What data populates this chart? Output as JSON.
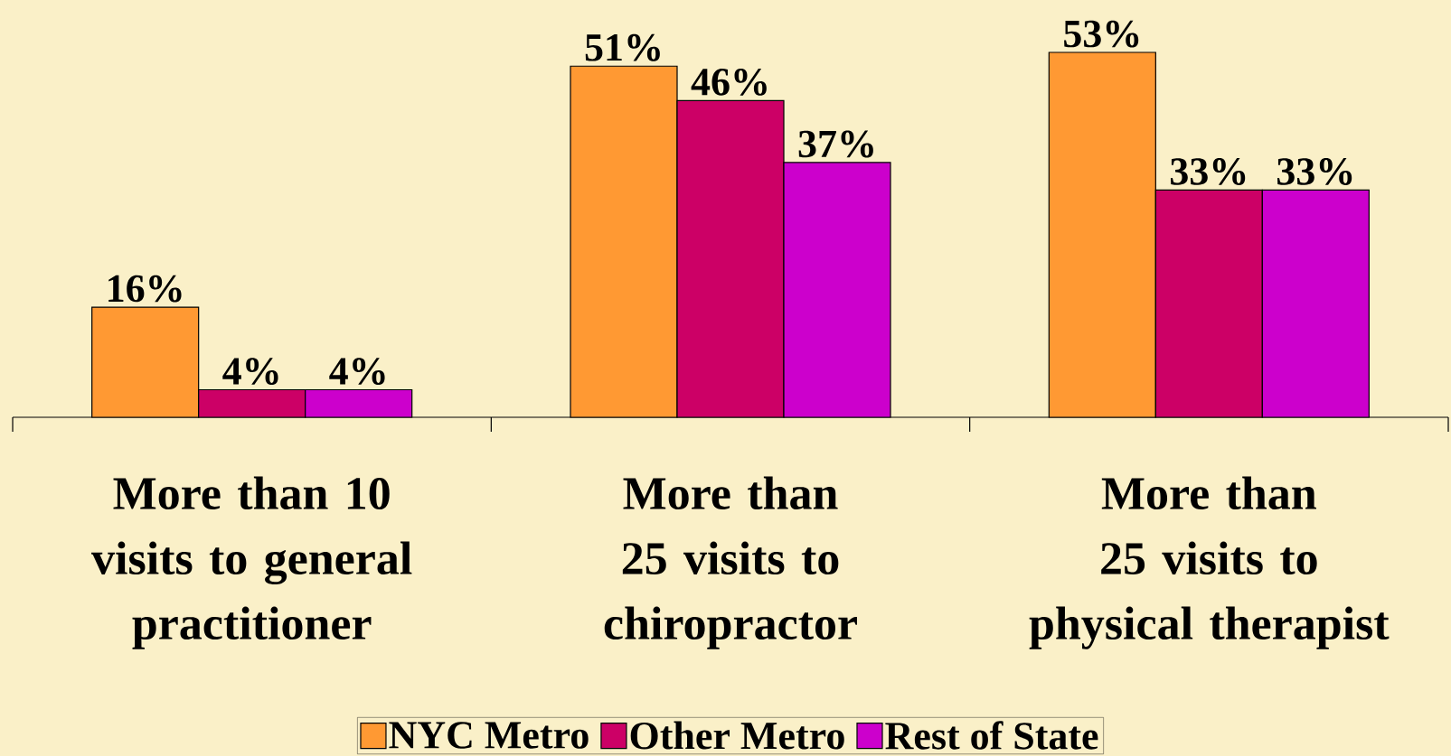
{
  "chart_data": {
    "type": "bar",
    "categories": [
      "More than 10 visits to general practitioner",
      "More than 25 visits to chiropractor",
      "More than 25 visits to physical therapist"
    ],
    "series": [
      {
        "name": "NYC Metro",
        "color": "#ff9933",
        "values": [
          16,
          51,
          53
        ],
        "value_labels": [
          "16%",
          "51%",
          "53%"
        ]
      },
      {
        "name": "Other Metro",
        "color": "#cc0066",
        "values": [
          4,
          46,
          33
        ],
        "value_labels": [
          "4%",
          "46%",
          "33%"
        ]
      },
      {
        "name": "Rest of State",
        "color": "#cc00cc",
        "values": [
          4,
          37,
          33
        ],
        "value_labels": [
          "4%",
          "37%",
          "33%"
        ]
      }
    ],
    "legend": "bottom"
  }
}
